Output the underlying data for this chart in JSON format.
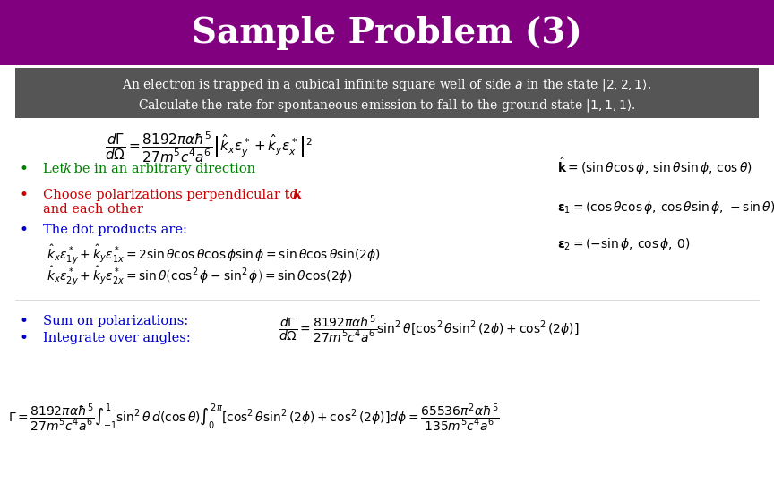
{
  "title": "Sample Problem (3)",
  "title_bg": "#800080",
  "title_color": "#ffffff",
  "title_fontsize": 28,
  "problem_bg": "#555555",
  "problem_color": "#ffffff",
  "problem_text1": "An electron is trapped in a cubical infinite square well of side $a$ in the state $|2,2,1\\rangle$.",
  "problem_text2": "Calculate the rate for spontaneous emission to fall to the ground state $|1,1,1\\rangle$.",
  "body_bg": "#ffffff",
  "bullet_color_green": "#008000",
  "bullet_color_red": "#cc0000",
  "bullet_color_blue": "#0000cc",
  "math_color": "#000000",
  "eq1": "$\\dfrac{d\\Gamma}{d\\Omega} = \\dfrac{8192\\pi\\alpha\\hbar^5}{27m^5c^4a^6}\\left|\\hat{k}_x\\varepsilon_y^* + \\hat{k}_y\\varepsilon_x^*\\right|^2$",
  "eq_kvec": "$\\hat{\\mathbf{k}} = \\left(\\sin\\theta\\cos\\phi, \\sin\\theta\\sin\\phi, \\cos\\theta\\right)$",
  "eq_eps1": "$\\boldsymbol{\\varepsilon}_1 = \\left(\\cos\\theta\\cos\\phi, \\cos\\theta\\sin\\phi, -\\sin\\theta\\right)$",
  "eq_eps2": "$\\boldsymbol{\\varepsilon}_2 = \\left(-\\sin\\phi, \\cos\\phi, 0\\right)$",
  "bullet1": "Let k be in an arbitrary direction",
  "bullet2": "Choose polarizations perpendicular to ",
  "bullet2k": "k",
  "bullet2b": "and each other",
  "bullet3": "The dot products are:",
  "eq_dot1": "$\\hat{k}_x\\varepsilon_{1y}^* + \\hat{k}_y\\varepsilon_{1x}^* = 2\\sin\\theta\\cos\\theta\\cos\\phi\\sin\\phi = \\sin\\theta\\cos\\theta\\sin(2\\phi)$",
  "eq_dot2": "$\\hat{k}_x\\varepsilon_{2y}^* + \\hat{k}_y\\varepsilon_{2x}^* = \\sin\\theta\\left(\\cos^2\\phi - \\sin^2\\phi\\right) = \\sin\\theta\\cos(2\\phi)$",
  "bullet4": "Sum on polarizations:",
  "bullet5": "Integrate over angles:",
  "eq_sum": "$\\dfrac{d\\Gamma}{d\\Omega} = \\dfrac{8192\\pi\\alpha\\hbar^5}{27m^5c^4a^6}\\sin^2\\theta\\left[\\cos^2\\theta\\sin^2(2\\phi)+\\cos^2(2\\phi)\\right]$",
  "eq_final": "$\\Gamma = \\dfrac{8192\\pi\\alpha\\hbar^5}{27m^5c^4a^6}\\int_{-1}^{1}\\sin^2\\theta\\, d(\\cos\\theta)\\int_0^{2\\pi}\\left[\\cos^2\\theta\\sin^2(2\\phi)+\\cos^2(2\\phi)\\right]d\\phi = \\dfrac{65536\\pi^2\\alpha\\hbar^5}{135m^5c^4a^6}$",
  "fig_width": 8.64,
  "fig_height": 5.4,
  "dpi": 100
}
